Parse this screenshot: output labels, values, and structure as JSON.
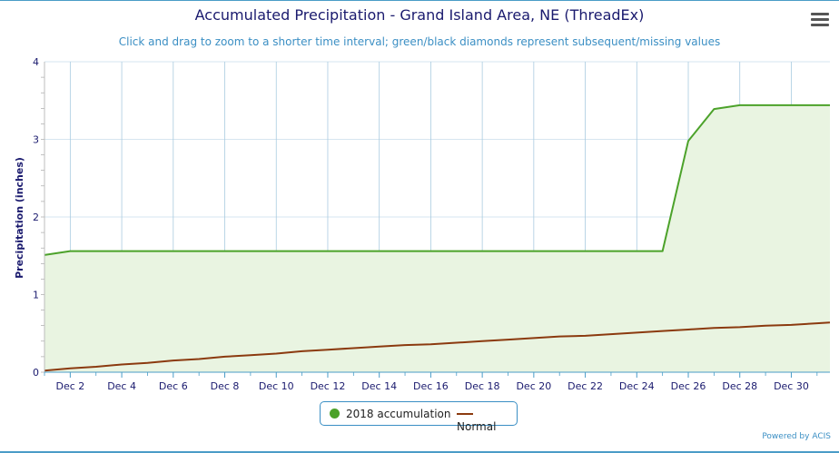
{
  "chart_data": {
    "type": "line",
    "title": "Accumulated Precipitation - Grand Island Area, NE (ThreadEx)",
    "subtitle": "Click and drag to zoom to a shorter time interval; green/black diamonds represent subsequent/missing values",
    "xlabel": "",
    "ylabel": "Precipitation (inches)",
    "ylim": [
      0,
      4
    ],
    "xlim": [
      1,
      31.5
    ],
    "y_ticks": [
      "0",
      "1",
      "2",
      "3",
      "4"
    ],
    "x_ticks": [
      {
        "day": 2,
        "label": "Dec 2"
      },
      {
        "day": 4,
        "label": "Dec 4"
      },
      {
        "day": 6,
        "label": "Dec 6"
      },
      {
        "day": 8,
        "label": "Dec 8"
      },
      {
        "day": 10,
        "label": "Dec 10"
      },
      {
        "day": 12,
        "label": "Dec 12"
      },
      {
        "day": 14,
        "label": "Dec 14"
      },
      {
        "day": 16,
        "label": "Dec 16"
      },
      {
        "day": 18,
        "label": "Dec 18"
      },
      {
        "day": 20,
        "label": "Dec 20"
      },
      {
        "day": 22,
        "label": "Dec 22"
      },
      {
        "day": 24,
        "label": "Dec 24"
      },
      {
        "day": 26,
        "label": "Dec 26"
      },
      {
        "day": 28,
        "label": "Dec 28"
      },
      {
        "day": 30,
        "label": "Dec 30"
      }
    ],
    "grid": true,
    "legend_position": "bottom-center",
    "series": [
      {
        "name": "2018 accumulation",
        "color": "#4ca22a",
        "fill": "#e9f4e1",
        "x": [
          1,
          2,
          3,
          4,
          5,
          6,
          7,
          8,
          9,
          10,
          11,
          12,
          13,
          14,
          15,
          16,
          17,
          18,
          19,
          20,
          21,
          22,
          23,
          24,
          25,
          26,
          27,
          28,
          29,
          30,
          31,
          31.5
        ],
        "values": [
          1.51,
          1.56,
          1.56,
          1.56,
          1.56,
          1.56,
          1.56,
          1.56,
          1.56,
          1.56,
          1.56,
          1.56,
          1.56,
          1.56,
          1.56,
          1.56,
          1.56,
          1.56,
          1.56,
          1.56,
          1.56,
          1.56,
          1.56,
          1.56,
          1.56,
          2.98,
          3.39,
          3.44,
          3.44,
          3.44,
          3.44,
          3.44
        ]
      },
      {
        "name": "Normal",
        "color": "#8b3a0f",
        "x": [
          1,
          2,
          3,
          4,
          5,
          6,
          7,
          8,
          9,
          10,
          11,
          12,
          13,
          14,
          15,
          16,
          17,
          18,
          19,
          20,
          21,
          22,
          23,
          24,
          25,
          26,
          27,
          28,
          29,
          30,
          31,
          31.5
        ],
        "values": [
          0.02,
          0.05,
          0.07,
          0.1,
          0.12,
          0.15,
          0.17,
          0.2,
          0.22,
          0.24,
          0.27,
          0.29,
          0.31,
          0.33,
          0.35,
          0.36,
          0.38,
          0.4,
          0.42,
          0.44,
          0.46,
          0.47,
          0.49,
          0.51,
          0.53,
          0.55,
          0.57,
          0.58,
          0.6,
          0.61,
          0.63,
          0.64
        ]
      }
    ]
  },
  "legend": {
    "items": [
      {
        "label": "2018 accumulation"
      },
      {
        "label": "Normal"
      }
    ]
  },
  "credit": "Powered by ACIS",
  "menu_icon": "hamburger-menu-icon"
}
